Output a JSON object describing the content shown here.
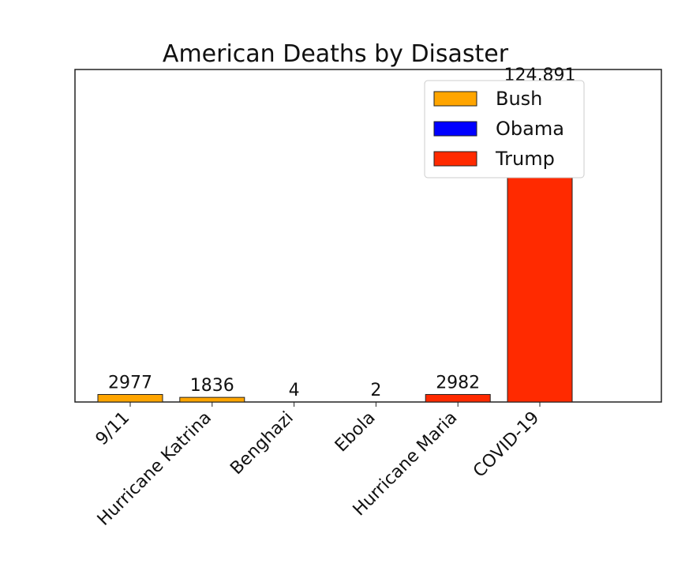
{
  "chart_data": {
    "type": "bar",
    "title": "American Deaths by Disaster",
    "categories": [
      "9/11",
      "Hurricane Katrina",
      "Benghazi",
      "Ebola",
      "Hurricane Maria",
      "COVID-19"
    ],
    "series": [
      {
        "name": "Bush",
        "color": "#ffa500",
        "values": [
          2977,
          1836,
          null,
          null,
          null,
          null
        ],
        "value_labels": [
          "2977",
          "1836",
          null,
          null,
          null,
          null
        ]
      },
      {
        "name": "Obama",
        "color": "#0000ff",
        "values": [
          null,
          null,
          4,
          2,
          null,
          null
        ],
        "value_labels": [
          null,
          null,
          "4",
          "2",
          null,
          null
        ]
      },
      {
        "name": "Trump",
        "color": "#ff2a00",
        "values": [
          null,
          null,
          null,
          null,
          2982,
          124891
        ],
        "value_labels": [
          null,
          null,
          null,
          null,
          "2982",
          "124,891"
        ]
      }
    ],
    "legend": "upper right"
  }
}
